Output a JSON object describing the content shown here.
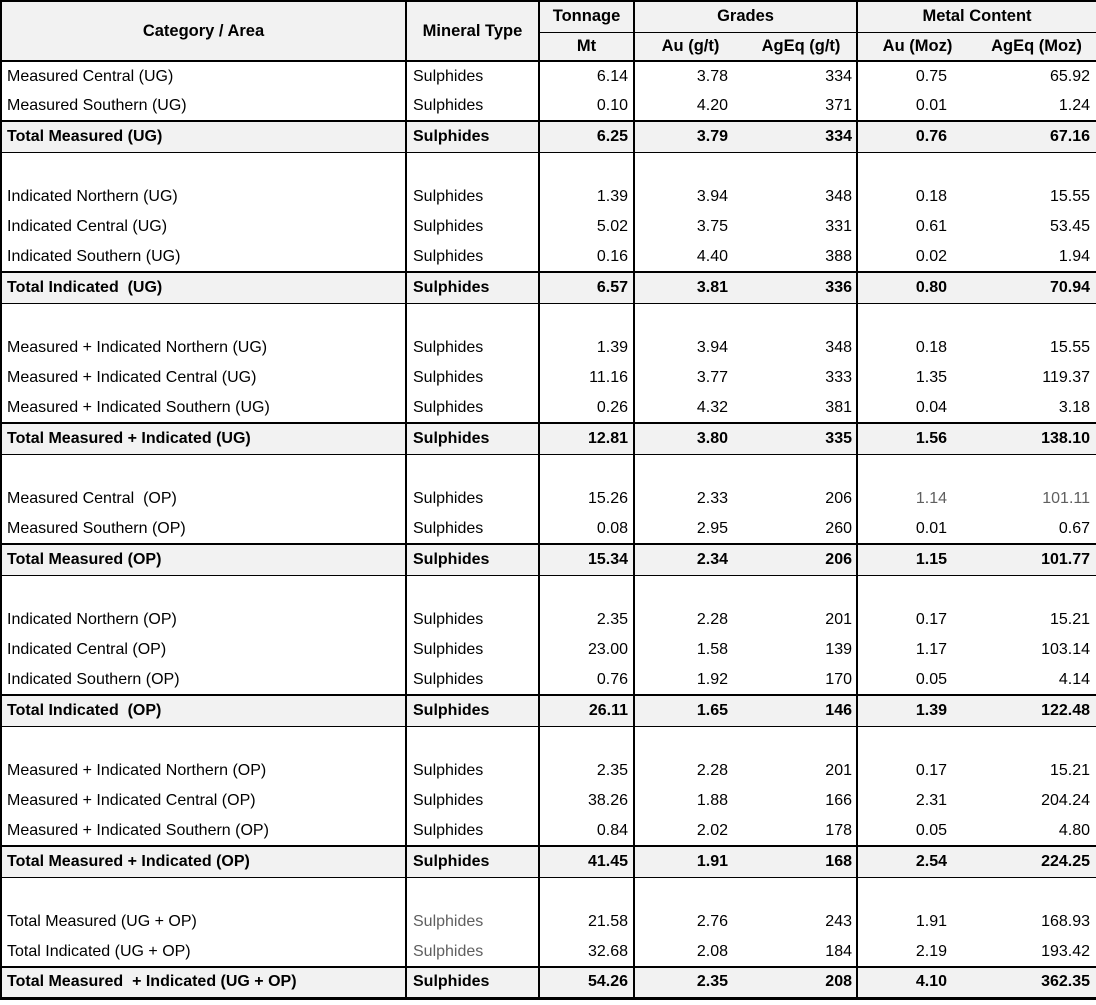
{
  "table": {
    "colors": {
      "header_bg": "#f2f2f2",
      "total_bg": "#f2f2f2",
      "border": "#000000",
      "text": "#000000",
      "muted_text": "#5f5f5f"
    },
    "header": {
      "category": "Category / Area",
      "mineral": "Mineral Type",
      "tonnage": "Tonnage",
      "tonnage_unit": "Mt",
      "grades": "Grades",
      "au_grade": "Au (g/t)",
      "ageq_grade": "AgEq (g/t)",
      "metal": "Metal Content",
      "au_metal": "Au (Moz)",
      "ageq_metal": "AgEq (Moz)"
    },
    "rows": [
      {
        "type": "data",
        "category": "Measured Central (UG)",
        "mineral": "Sulphides",
        "values": [
          "6.14",
          "3.78",
          "334",
          "0.75",
          "65.92"
        ]
      },
      {
        "type": "data",
        "category": "Measured Southern (UG)",
        "mineral": "Sulphides",
        "values": [
          "0.10",
          "4.20",
          "371",
          "0.01",
          "1.24"
        ]
      },
      {
        "type": "total",
        "category": "Total Measured (UG)",
        "mineral": "Sulphides",
        "values": [
          "6.25",
          "3.79",
          "334",
          "0.76",
          "67.16"
        ]
      },
      {
        "type": "blank"
      },
      {
        "type": "data",
        "category": "Indicated Northern (UG)",
        "mineral": "Sulphides",
        "values": [
          "1.39",
          "3.94",
          "348",
          "0.18",
          "15.55"
        ]
      },
      {
        "type": "data",
        "category": "Indicated Central (UG)",
        "mineral": "Sulphides",
        "values": [
          "5.02",
          "3.75",
          "331",
          "0.61",
          "53.45"
        ]
      },
      {
        "type": "data",
        "category": "Indicated Southern (UG)",
        "mineral": "Sulphides",
        "values": [
          "0.16",
          "4.40",
          "388",
          "0.02",
          "1.94"
        ]
      },
      {
        "type": "total",
        "category": "Total Indicated  (UG)",
        "mineral": "Sulphides",
        "values": [
          "6.57",
          "3.81",
          "336",
          "0.80",
          "70.94"
        ]
      },
      {
        "type": "blank"
      },
      {
        "type": "data",
        "category": "Measured + Indicated Northern (UG)",
        "mineral": "Sulphides",
        "values": [
          "1.39",
          "3.94",
          "348",
          "0.18",
          "15.55"
        ]
      },
      {
        "type": "data",
        "category": "Measured + Indicated Central (UG)",
        "mineral": "Sulphides",
        "values": [
          "11.16",
          "3.77",
          "333",
          "1.35",
          "119.37"
        ]
      },
      {
        "type": "data",
        "category": "Measured + Indicated Southern (UG)",
        "mineral": "Sulphides",
        "values": [
          "0.26",
          "4.32",
          "381",
          "0.04",
          "3.18"
        ]
      },
      {
        "type": "total",
        "category": "Total Measured + Indicated (UG)",
        "mineral": "Sulphides",
        "values": [
          "12.81",
          "3.80",
          "335",
          "1.56",
          "138.10"
        ]
      },
      {
        "type": "blank"
      },
      {
        "type": "data",
        "category": "Measured Central  (OP)",
        "mineral": "Sulphides",
        "values": [
          "15.26",
          "2.33",
          "206",
          "1.14",
          "101.11"
        ],
        "muted_values": [
          3,
          4
        ]
      },
      {
        "type": "data",
        "category": "Measured Southern (OP)",
        "mineral": "Sulphides",
        "values": [
          "0.08",
          "2.95",
          "260",
          "0.01",
          "0.67"
        ]
      },
      {
        "type": "total",
        "category": "Total Measured (OP)",
        "mineral": "Sulphides",
        "values": [
          "15.34",
          "2.34",
          "206",
          "1.15",
          "101.77"
        ]
      },
      {
        "type": "blank"
      },
      {
        "type": "data",
        "category": "Indicated Northern (OP)",
        "mineral": "Sulphides",
        "values": [
          "2.35",
          "2.28",
          "201",
          "0.17",
          "15.21"
        ]
      },
      {
        "type": "data",
        "category": "Indicated Central (OP)",
        "mineral": "Sulphides",
        "values": [
          "23.00",
          "1.58",
          "139",
          "1.17",
          "103.14"
        ]
      },
      {
        "type": "data",
        "category": "Indicated Southern (OP)",
        "mineral": "Sulphides",
        "values": [
          "0.76",
          "1.92",
          "170",
          "0.05",
          "4.14"
        ]
      },
      {
        "type": "total",
        "category": "Total Indicated  (OP)",
        "mineral": "Sulphides",
        "values": [
          "26.11",
          "1.65",
          "146",
          "1.39",
          "122.48"
        ]
      },
      {
        "type": "blank"
      },
      {
        "type": "data",
        "category": "Measured + Indicated Northern (OP)",
        "mineral": "Sulphides",
        "values": [
          "2.35",
          "2.28",
          "201",
          "0.17",
          "15.21"
        ]
      },
      {
        "type": "data",
        "category": "Measured + Indicated Central (OP)",
        "mineral": "Sulphides",
        "values": [
          "38.26",
          "1.88",
          "166",
          "2.31",
          "204.24"
        ]
      },
      {
        "type": "data",
        "category": "Measured + Indicated Southern (OP)",
        "mineral": "Sulphides",
        "values": [
          "0.84",
          "2.02",
          "178",
          "0.05",
          "4.80"
        ]
      },
      {
        "type": "total",
        "category": "Total Measured + Indicated (OP)",
        "mineral": "Sulphides",
        "values": [
          "41.45",
          "1.91",
          "168",
          "2.54",
          "224.25"
        ]
      },
      {
        "type": "blank"
      },
      {
        "type": "data",
        "category": "Total Measured (UG + OP)",
        "mineral": "Sulphides",
        "values": [
          "21.58",
          "2.76",
          "243",
          "1.91",
          "168.93"
        ],
        "muted_mineral": true
      },
      {
        "type": "data",
        "category": "Total Indicated (UG + OP)",
        "mineral": "Sulphides",
        "values": [
          "32.68",
          "2.08",
          "184",
          "2.19",
          "193.42"
        ],
        "muted_mineral": true
      },
      {
        "type": "total",
        "category": "Total Measured  + Indicated (UG + OP)",
        "mineral": "Sulphides",
        "values": [
          "54.26",
          "2.35",
          "208",
          "4.10",
          "362.35"
        ]
      }
    ]
  }
}
